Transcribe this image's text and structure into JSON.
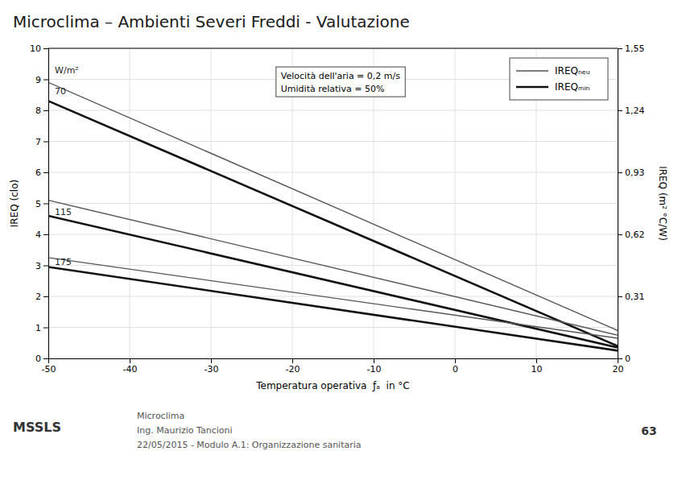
{
  "chart_data": {
    "type": "line",
    "title": "Microclima – Ambienti Severi Freddi - Valutazione",
    "x_label": "Temperatura operativa  ƒₐ  in °C",
    "y_label": "IREQ (clo)",
    "y2_label": "IREQ (m² °C/W)",
    "x": [
      -50,
      20
    ],
    "xlim": [
      -50,
      20
    ],
    "xticks": [
      -50,
      -40,
      -30,
      -20,
      -10,
      0,
      10,
      20
    ],
    "ylim": [
      0,
      10
    ],
    "yticks": [
      0,
      1,
      2,
      3,
      4,
      5,
      6,
      7,
      8,
      9,
      10
    ],
    "y2lim": [
      0,
      1.55
    ],
    "y2ticks": [
      0,
      {
        "value": 0.31,
        "label": "0,31"
      },
      {
        "value": 0.62,
        "label": "0,62"
      },
      {
        "value": 0.93,
        "label": "0,93"
      },
      {
        "value": 1.24,
        "label": "1,24"
      },
      {
        "value": 1.55,
        "label": "1,55"
      }
    ],
    "grid": true,
    "legend": "upper right",
    "series": [
      {
        "name": "IREQₙₑᵤ",
        "color": "#555555",
        "line_style": "thin",
        "values": [
          8.9,
          0.9
        ]
      },
      {
        "name": "IREQₘᵢₙ",
        "color": "#111111",
        "line_style": "thick",
        "values": [
          8.3,
          0.4
        ]
      },
      {
        "color": "#555555",
        "line_style": "thin",
        "values": [
          5.1,
          0.75
        ]
      },
      {
        "color": "#111111",
        "line_style": "thick",
        "values": [
          4.6,
          0.35
        ]
      },
      {
        "color": "#555555",
        "line_style": "thin",
        "values": [
          3.25,
          0.65
        ]
      },
      {
        "color": "#111111",
        "line_style": "thick",
        "values": [
          2.95,
          0.25
        ]
      }
    ],
    "annotations": [
      {
        "text": "W/m²",
        "x": -49.5,
        "y": 9.2
      },
      {
        "text": "70",
        "x": -49.5,
        "y": 8.6
      },
      {
        "text": "115",
        "x": -49.5,
        "y": 4.7
      },
      {
        "text": "175",
        "x": -49.5,
        "y": 3.1
      },
      {
        "text": [
          "Velocità dell'aria = 0,2 m/s",
          "Umidità relativa = 50%"
        ]
      },
      {
        "text": [
          "Microclima",
          "Ing. Maurizio Tancioni",
          "22/05/2015 - Modulo A.1: Organizzazione sanitaria"
        ]
      },
      {
        "text": "MSSLS"
      },
      {
        "text": "63"
      }
    ]
  }
}
